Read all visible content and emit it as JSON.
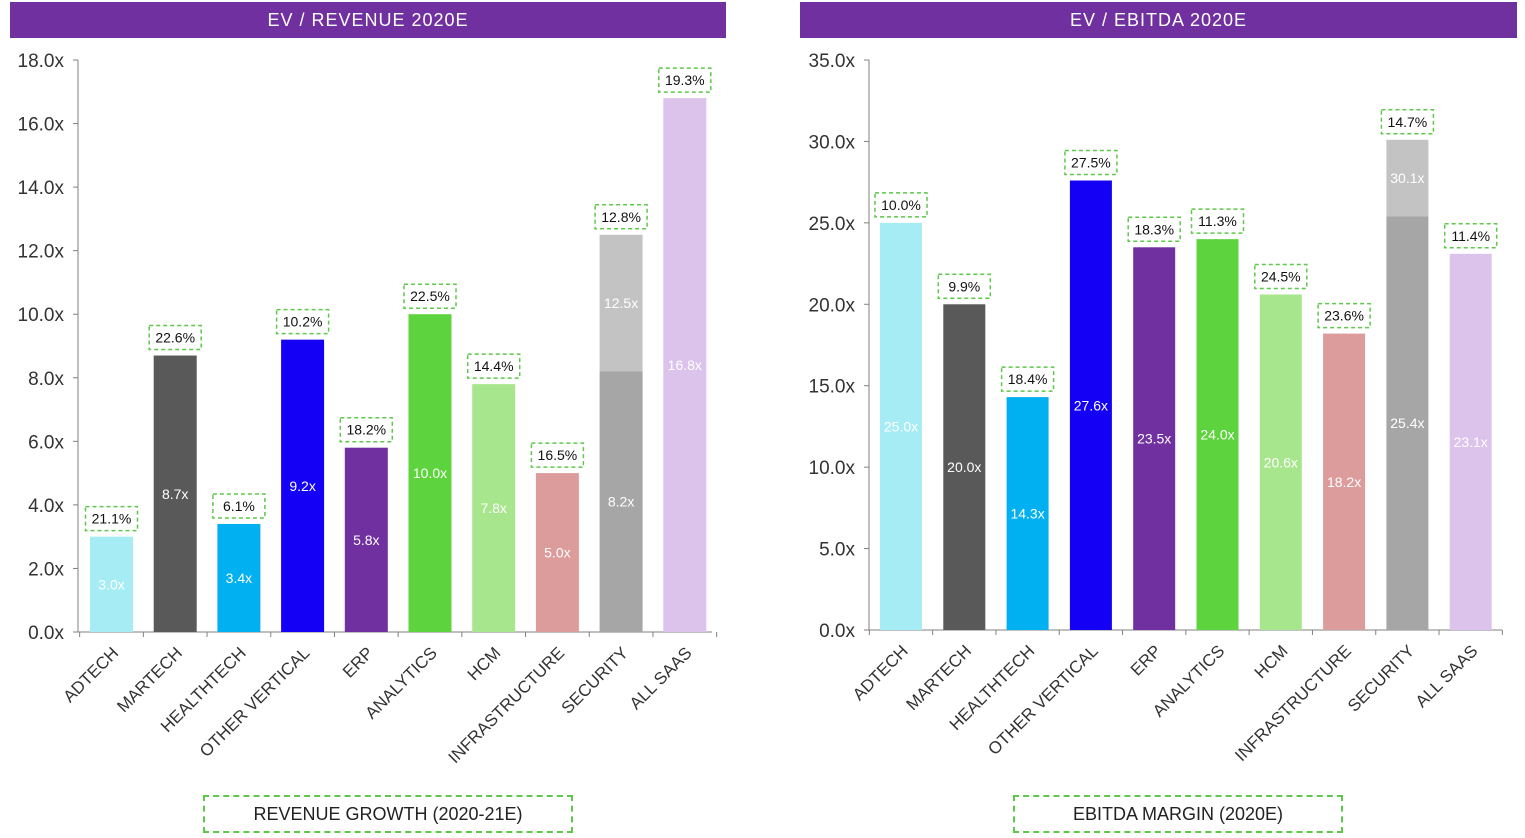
{
  "chart_data": [
    {
      "type": "bar",
      "title": "EV / REVENUE 2020E",
      "categories": [
        "ADTECH",
        "MARTECH",
        "HEALTHTECH",
        "OTHER VERTICAL",
        "ERP",
        "ANALYTICS",
        "HCM",
        "INFRASTRUCTURE",
        "SECURITY",
        "ALL SAAS"
      ],
      "values": [
        3.0,
        8.7,
        3.4,
        9.2,
        5.8,
        10.0,
        7.8,
        5.0,
        8.2,
        16.8
      ],
      "value_labels": [
        "3.0x",
        "8.7x",
        "3.4x",
        "9.2x",
        "5.8x",
        "10.0x",
        "7.8x",
        "5.0x",
        "8.2x",
        "16.8x"
      ],
      "stacked_top": {
        "category": "SECURITY",
        "value": 12.5,
        "label": "12.5x"
      },
      "annotations": [
        "21.1%",
        "22.6%",
        "6.1%",
        "10.2%",
        "18.2%",
        "22.5%",
        "14.4%",
        "16.5%",
        "12.8%",
        "19.3%"
      ],
      "annotation_label": "REVENUE GROWTH (2020-21E)",
      "ylim": [
        0,
        18
      ],
      "yticks": [
        0,
        2,
        4,
        6,
        8,
        10,
        12,
        14,
        16,
        18
      ],
      "ytick_labels": [
        "0.0x",
        "2.0x",
        "4.0x",
        "6.0x",
        "8.0x",
        "10.0x",
        "12.0x",
        "14.0x",
        "16.0x",
        "18.0x"
      ],
      "colors": [
        "#a6ecf5",
        "#595959",
        "#00b0f0",
        "#1400f5",
        "#7030a0",
        "#5dd33d",
        "#a8e68e",
        "#dc9c9c",
        "#a6a6a6",
        "#dcc3ec"
      ],
      "stacked_top_color": "#c3c3c3",
      "grid": false
    },
    {
      "type": "bar",
      "title": "EV / EBITDA 2020E",
      "categories": [
        "ADTECH",
        "MARTECH",
        "HEALTHTECH",
        "OTHER VERTICAL",
        "ERP",
        "ANALYTICS",
        "HCM",
        "INFRASTRUCTURE",
        "SECURITY",
        "ALL SAAS"
      ],
      "values": [
        25.0,
        20.0,
        14.3,
        27.6,
        23.5,
        24.0,
        20.6,
        18.2,
        25.4,
        23.1
      ],
      "value_labels": [
        "25.0x",
        "20.0x",
        "14.3x",
        "27.6x",
        "23.5x",
        "24.0x",
        "20.6x",
        "18.2x",
        "25.4x",
        "23.1x"
      ],
      "stacked_top": {
        "category": "SECURITY",
        "value": 30.1,
        "label": "30.1x"
      },
      "annotations": [
        "10.0%",
        "9.9%",
        "18.4%",
        "27.5%",
        "18.3%",
        "11.3%",
        "24.5%",
        "23.6%",
        "14.7%",
        "11.4%"
      ],
      "annotation_label": "EBITDA MARGIN (2020E)",
      "ylim": [
        0,
        35
      ],
      "yticks": [
        0,
        5,
        10,
        15,
        20,
        25,
        30,
        35
      ],
      "ytick_labels": [
        "0.0x",
        "5.0x",
        "10.0x",
        "15.0x",
        "20.0x",
        "25.0x",
        "30.0x",
        "35.0x"
      ],
      "colors": [
        "#a6ecf5",
        "#595959",
        "#00b0f0",
        "#1400f5",
        "#7030a0",
        "#5dd33d",
        "#a8e68e",
        "#dc9c9c",
        "#a6a6a6",
        "#dcc3ec"
      ],
      "stacked_top_color": "#c3c3c3",
      "grid": false
    }
  ]
}
